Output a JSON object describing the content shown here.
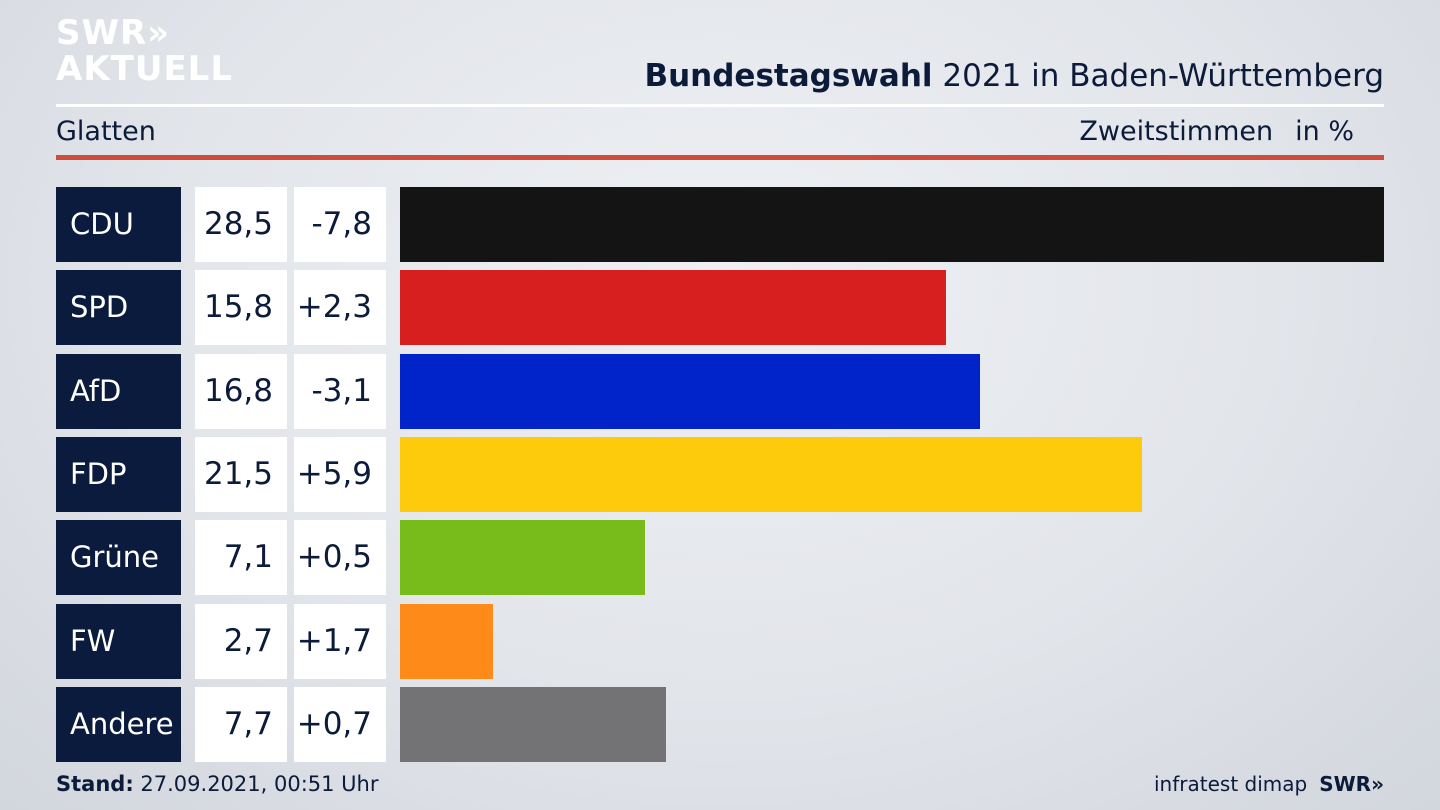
{
  "logo": {
    "line1": "SWR»",
    "line2": "AKTUELL"
  },
  "title_bold": "Bundestagswahl",
  "title_rest": " 2021 in Baden-Württemberg",
  "region": "Glatten",
  "subtitle_measure": "Zweitstimmen",
  "subtitle_unit": "in %",
  "footer": {
    "stand_label": "Stand:",
    "stand_value": " 27.09.2021, 00:51 Uhr",
    "source": "infratest dimap",
    "brand": "SWR»"
  },
  "colors": {
    "accent_rule": "#cf4b3a",
    "party_box": "#0b1b3d",
    "text": "#0c1b3a"
  },
  "chart_data": {
    "type": "bar",
    "orientation": "horizontal",
    "title": "Bundestagswahl 2021 in Baden-Württemberg",
    "region": "Glatten",
    "measure": "Zweitstimmen",
    "unit": "in %",
    "xlim": [
      0,
      28.5
    ],
    "categories": [
      "CDU",
      "SPD",
      "AfD",
      "FDP",
      "Grüne",
      "FW",
      "Andere"
    ],
    "values": [
      28.5,
      15.8,
      16.8,
      21.5,
      7.1,
      2.7,
      7.7
    ],
    "value_labels": [
      "28,5",
      "15,8",
      "16,8",
      "21,5",
      "7,1",
      "2,7",
      "7,7"
    ],
    "change_labels": [
      "-7,8",
      "+2,3",
      "-3,1",
      "+5,9",
      "+0,5",
      "+1,7",
      "+0,7"
    ],
    "bar_colors": [
      "#141414",
      "#d71f1f",
      "#0024c9",
      "#fecb0c",
      "#78bc1b",
      "#fe8a19",
      "#737375"
    ]
  }
}
